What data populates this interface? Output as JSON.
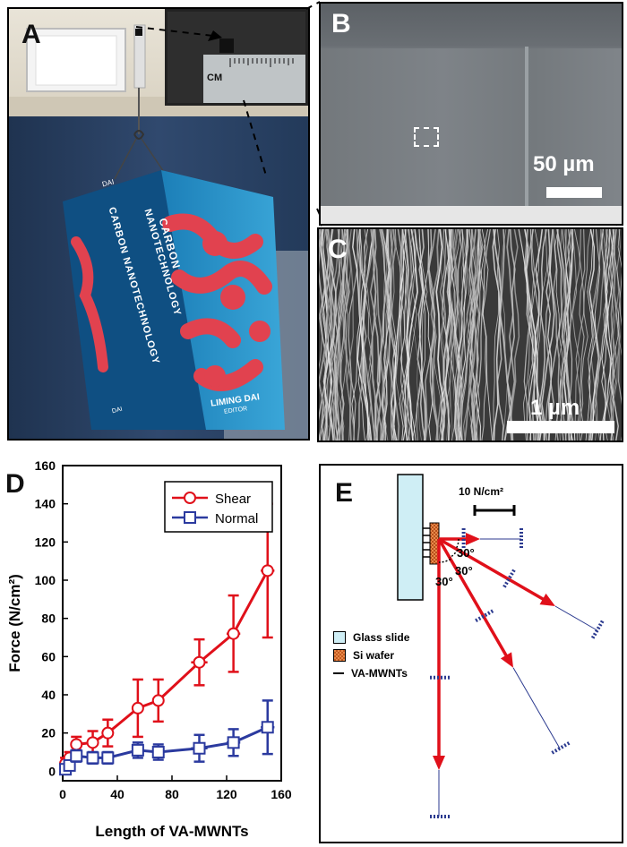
{
  "panels": {
    "a": {
      "label": "A",
      "ruler_unit": "CM",
      "book": {
        "spine_author": "DAI",
        "title_line1": "CARBON",
        "title_line2": "NANOTECHNOLOGY",
        "author": "LIMING DAI",
        "author_sub": "EDITOR",
        "spine_title": "CARBON NANOTECHNOLOGY",
        "spine_author_bottom": "DAI"
      }
    },
    "b": {
      "label": "B",
      "scale_text": "50 µm"
    },
    "c": {
      "label": "C",
      "scale_text": "1 µm"
    },
    "d": {
      "label": "D"
    },
    "e": {
      "label": "E",
      "scale_text": "10 N/cm²",
      "angles": [
        "30°",
        "30°",
        "30°"
      ],
      "legend": [
        {
          "name": "Glass slide",
          "color": "#cfeef5"
        },
        {
          "name": "Si wafer",
          "color": "#e88a4a"
        },
        {
          "name": "VA-MWNTs",
          "color": "#000000"
        }
      ],
      "arrow_color": "#e0101a",
      "tick_color": "#2b3a8f"
    }
  },
  "chart_data": {
    "type": "line",
    "xlabel": "Length of VA-MWNTs",
    "ylabel": "Force (N/cm²)",
    "xlim": [
      0,
      160
    ],
    "ylim": [
      -5,
      160
    ],
    "xticks": [
      0,
      40,
      80,
      120,
      160
    ],
    "yticks": [
      0,
      20,
      40,
      60,
      80,
      100,
      120,
      140,
      160
    ],
    "legend_position": "top-right",
    "series": [
      {
        "name": "Shear",
        "color": "#e0101a",
        "marker": "circle",
        "points": [
          {
            "x": 2,
            "y": 4,
            "yerr": 3,
            "xerr": 1
          },
          {
            "x": 5,
            "y": 7,
            "yerr": 3,
            "xerr": 1
          },
          {
            "x": 10,
            "y": 14,
            "yerr": 4,
            "xerr": 2
          },
          {
            "x": 22,
            "y": 15,
            "yerr": 6,
            "xerr": 3
          },
          {
            "x": 33,
            "y": 20,
            "yerr": 7,
            "xerr": 3
          },
          {
            "x": 55,
            "y": 33,
            "yerr": 15,
            "xerr": 4
          },
          {
            "x": 70,
            "y": 37,
            "yerr": 11,
            "xerr": 4
          },
          {
            "x": 100,
            "y": 57,
            "yerr": 12,
            "xerr": 6
          },
          {
            "x": 125,
            "y": 72,
            "yerr": 20,
            "xerr": 5
          },
          {
            "x": 150,
            "y": 105,
            "yerr": 35,
            "xerr": 5
          }
        ]
      },
      {
        "name": "Normal",
        "color": "#2b3a9f",
        "marker": "square",
        "points": [
          {
            "x": 2,
            "y": 1,
            "yerr": 2,
            "xerr": 1
          },
          {
            "x": 5,
            "y": 3,
            "yerr": 2,
            "xerr": 1
          },
          {
            "x": 10,
            "y": 8,
            "yerr": 3,
            "xerr": 2
          },
          {
            "x": 22,
            "y": 7,
            "yerr": 3,
            "xerr": 3
          },
          {
            "x": 33,
            "y": 7,
            "yerr": 3,
            "xerr": 3
          },
          {
            "x": 55,
            "y": 11,
            "yerr": 4,
            "xerr": 4
          },
          {
            "x": 70,
            "y": 10,
            "yerr": 4,
            "xerr": 4
          },
          {
            "x": 100,
            "y": 12,
            "yerr": 7,
            "xerr": 6
          },
          {
            "x": 125,
            "y": 15,
            "yerr": 7,
            "xerr": 5
          },
          {
            "x": 150,
            "y": 23,
            "yerr": 14,
            "xerr": 5
          }
        ]
      }
    ]
  }
}
